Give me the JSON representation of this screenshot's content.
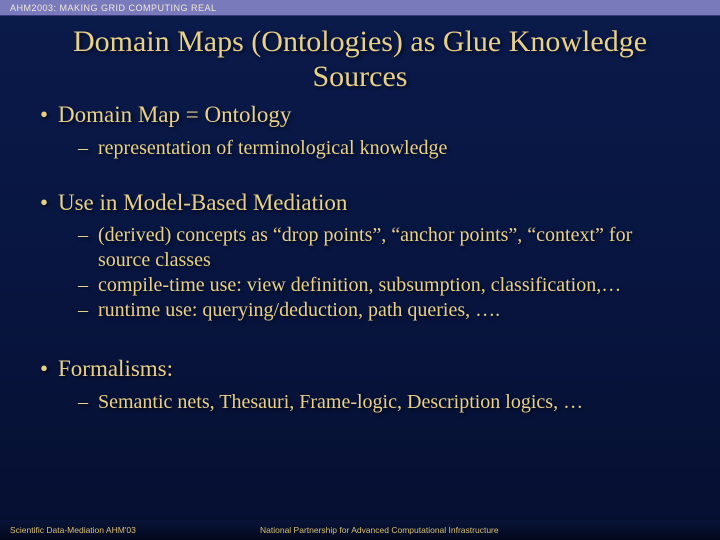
{
  "topbar": {
    "text": "AHM2003: MAKING GRID COMPUTING REAL"
  },
  "title": "Domain Maps (Ontologies) as Glue Knowledge Sources",
  "b1": "Domain Map = Ontology",
  "b1s1": "representation of terminological knowledge",
  "b2": "Use in Model-Based Mediation",
  "b2s1": "(derived) concepts as “drop points”, “anchor points”, “context” for source classes",
  "b2s2": "compile-time use: view definition, subsumption, classification,…",
  "b2s3": "runtime use: querying/deduction, path queries, ….",
  "b3": "Formalisms:",
  "b3s1": "Semantic nets, Thesauri, Frame-logic, Description logics, …",
  "footer": {
    "left": "Scientific Data-Mediation AHM'03",
    "center": "National Partnership for Advanced Computational Infrastructure"
  },
  "colors": {
    "text": "#e8d088",
    "bg_top": "#0a1a4a",
    "bg_bottom": "#050f30",
    "topbar_bg": "#787abb"
  }
}
